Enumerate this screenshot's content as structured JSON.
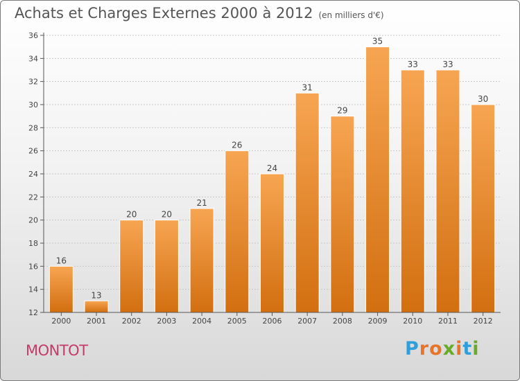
{
  "header": {
    "title": "Achats et Charges Externes 2000 à 2012",
    "subtitle": "(en milliers d'€)"
  },
  "footer": {
    "commune": "MONTOT",
    "logo": "Proxiti"
  },
  "colors": {
    "bar_top": "#f7a552",
    "bar_bottom": "#d26f10",
    "title": "#555555",
    "commune": "#c43a6a",
    "logo_letters": [
      "#2f9fdc",
      "#e8742a",
      "#e8742a",
      "#6aaa2a",
      "#e8742a",
      "#2f9fdc",
      "#6aaa2a"
    ]
  },
  "chart_data": {
    "type": "bar",
    "title": "Achats et Charges Externes 2000 à 2012",
    "subtitle": "(en milliers d'€)",
    "categories": [
      "2000",
      "2001",
      "2002",
      "2003",
      "2004",
      "2005",
      "2006",
      "2007",
      "2008",
      "2009",
      "2010",
      "2011",
      "2012"
    ],
    "values": [
      16,
      13,
      20,
      20,
      21,
      26,
      24,
      31,
      29,
      35,
      33,
      33,
      30
    ],
    "ylim": [
      12,
      36
    ],
    "yticks": [
      12,
      14,
      16,
      18,
      20,
      22,
      24,
      26,
      28,
      30,
      32,
      34,
      36
    ],
    "grid": true,
    "xlabel": "",
    "ylabel": ""
  }
}
